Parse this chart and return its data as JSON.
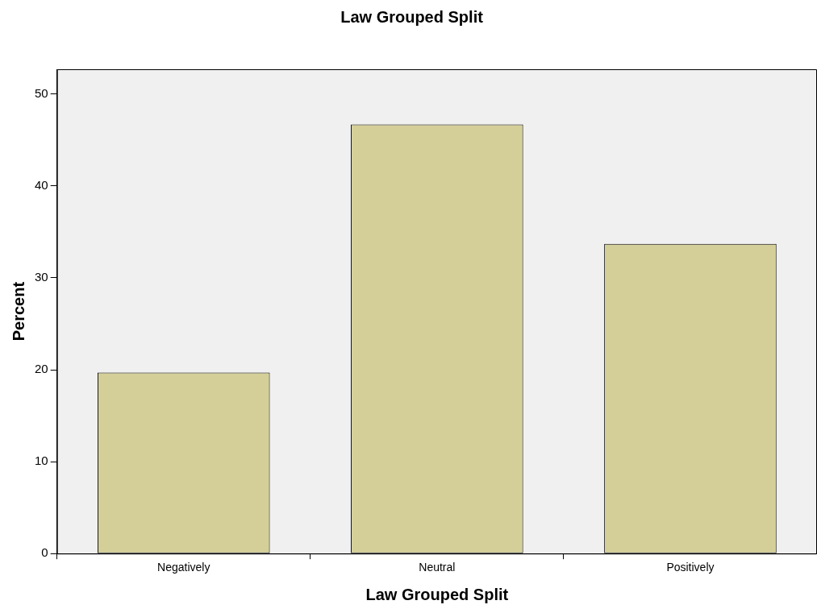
{
  "chart_data": {
    "type": "bar",
    "title": "Law Grouped Split",
    "xlabel": "Law Grouped Split",
    "ylabel": "Percent",
    "categories": [
      "Negatively",
      "Neutral",
      "Positively"
    ],
    "values": [
      19.7,
      46.7,
      33.7
    ],
    "color": "#d4cf98",
    "ylim": [
      0,
      52.7
    ],
    "yticks": [
      0,
      10,
      20,
      30,
      40,
      50
    ],
    "grid": false,
    "legend": false
  }
}
